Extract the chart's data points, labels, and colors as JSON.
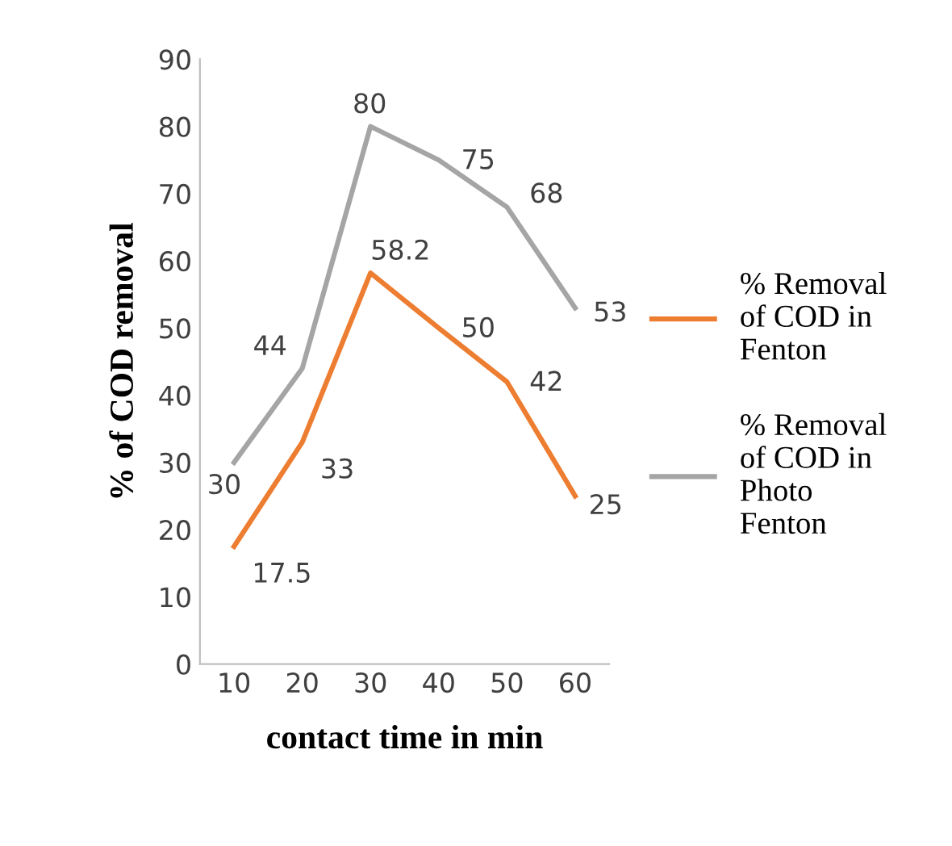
{
  "chart_data": {
    "type": "line",
    "xlabel": "contact time in min",
    "ylabel": "% of COD removal",
    "categories": [
      "10",
      "20",
      "30",
      "40",
      "50",
      "60"
    ],
    "series": [
      {
        "name": "% Removal of COD in Fenton",
        "color": "#ed7d31",
        "values": [
          17.5,
          33,
          58.2,
          50,
          42,
          25
        ]
      },
      {
        "name": "% Removal of COD in Photo Fenton",
        "color": "#a5a5a5",
        "values": [
          30,
          44,
          80,
          75,
          68,
          53
        ]
      }
    ],
    "ylim": [
      0,
      90
    ],
    "yticks": [
      0,
      10,
      20,
      30,
      40,
      50,
      60,
      70,
      80,
      90
    ],
    "data_labels": true,
    "grid": false,
    "legend": "right",
    "marker": "none",
    "line_style": "solid"
  }
}
